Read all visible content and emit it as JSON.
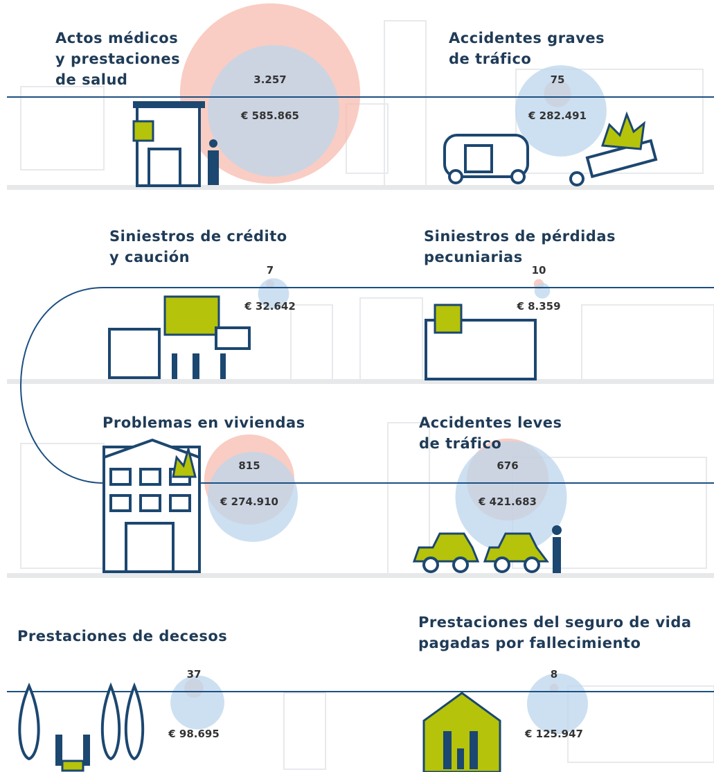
{
  "items": [
    {
      "title": [
        "Actos médicos",
        "y prestaciones",
        "de salud"
      ],
      "count": "3.257",
      "amount": "€ 585.865"
    },
    {
      "title": [
        "Accidentes graves",
        "de tráfico"
      ],
      "count": "75",
      "amount": "€ 282.491"
    },
    {
      "title": [
        "Siniestros de crédito",
        "y caución"
      ],
      "count": "7",
      "amount": "€ 32.642"
    },
    {
      "title": [
        "Siniestros de pérdidas",
        "pecuniarias"
      ],
      "count": "10",
      "amount": "€ 8.359"
    },
    {
      "title": [
        "Problemas en viviendas"
      ],
      "count": "815",
      "amount": "€ 274.910"
    },
    {
      "title": [
        "Accidentes leves",
        "de tráfico"
      ],
      "count": "676",
      "amount": "€ 421.683"
    },
    {
      "title": [
        "Prestaciones de decesos"
      ],
      "count": "37",
      "amount": "€ 98.695"
    },
    {
      "title": [
        "Prestaciones del seguro de vida",
        "pagadas por fallecimiento"
      ],
      "count": "8",
      "amount": "€ 125.947"
    }
  ]
}
